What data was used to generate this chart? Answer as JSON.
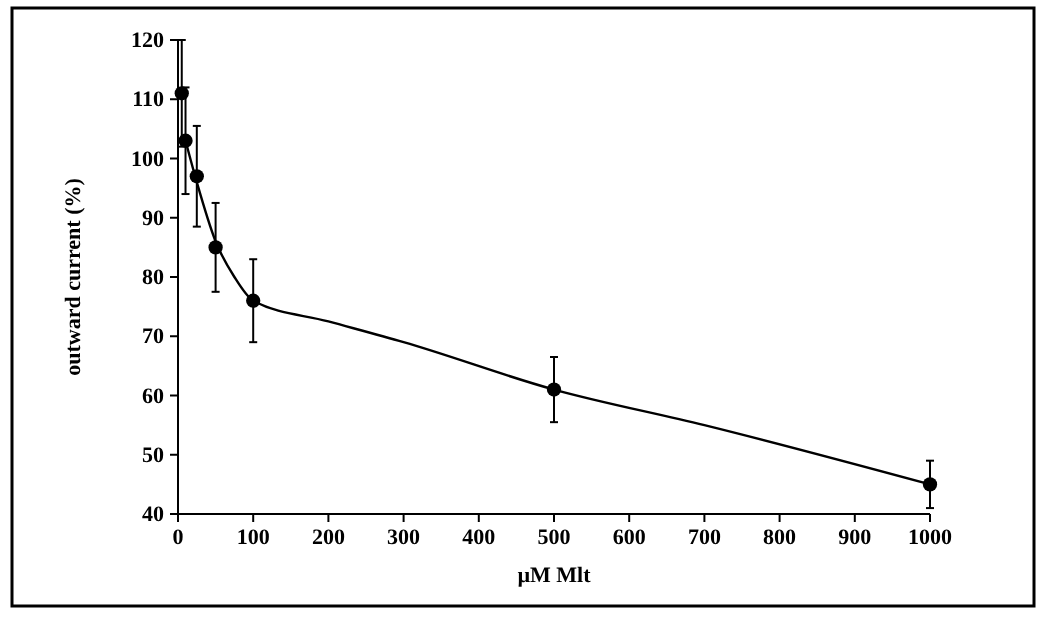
{
  "chart_data": {
    "type": "scatter",
    "xlabel": "µM Mlt",
    "ylabel": "outward current (%)",
    "xlim": [
      0,
      1000
    ],
    "xticks": [
      0,
      100,
      200,
      300,
      400,
      500,
      600,
      700,
      800,
      900,
      1000
    ],
    "ylim": [
      40,
      120
    ],
    "yticks": [
      40,
      50,
      60,
      70,
      80,
      90,
      100,
      110,
      120
    ],
    "grid": false,
    "marker": "circle",
    "series": [
      {
        "type": "line",
        "color": "#000000",
        "line_style": "solid",
        "marker": "none",
        "x": [
          10,
          25,
          50,
          75,
          100,
          200,
          300,
          500,
          700,
          1000
        ],
        "values": [
          103,
          96,
          86,
          80,
          76,
          72.5,
          69,
          61,
          55,
          45
        ]
      },
      {
        "color": "#000000",
        "x": [
          5,
          10,
          25,
          50,
          100,
          500,
          1000
        ],
        "values": [
          111,
          103,
          97,
          85,
          76,
          61,
          45
        ],
        "errors": [
          9,
          9,
          8.5,
          7.5,
          7,
          5.5,
          4
        ]
      }
    ]
  }
}
